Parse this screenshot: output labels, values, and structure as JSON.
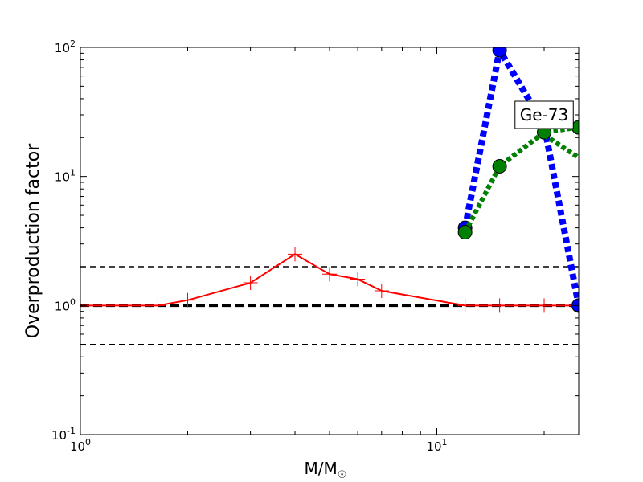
{
  "chart_data": {
    "type": "line",
    "title": "",
    "xlabel": "M/M",
    "xlabel_sub": "☉",
    "ylabel": "Overproduction factor",
    "xscale": "log",
    "yscale": "log",
    "xlim": [
      1,
      25
    ],
    "ylim": [
      0.1,
      100
    ],
    "x_ticks": [
      {
        "value": 1,
        "base": "10",
        "exp": "0"
      },
      {
        "value": 10,
        "base": "10",
        "exp": "1"
      }
    ],
    "y_ticks": [
      {
        "value": 0.1,
        "base": "10",
        "exp": "-1"
      },
      {
        "value": 1,
        "base": "10",
        "exp": "0"
      },
      {
        "value": 10,
        "base": "10",
        "exp": "1"
      },
      {
        "value": 100,
        "base": "10",
        "exp": "2"
      }
    ],
    "grid": false,
    "annotation": {
      "text": "Ge-73",
      "x": 20,
      "y": 30
    },
    "reference_lines": [
      {
        "y": 2,
        "color": "#000000",
        "style": "dashed",
        "width": 1.5
      },
      {
        "y": 1,
        "color": "#000000",
        "style": "dashed",
        "width": 3.5
      },
      {
        "y": 0.5,
        "color": "#000000",
        "style": "dashed",
        "width": 1.5
      }
    ],
    "series": [
      {
        "color": "#ff0000",
        "style": "solid",
        "marker": "plus",
        "x": [
          1,
          1.65,
          2,
          3,
          4,
          5,
          6,
          7,
          12,
          15,
          20,
          25
        ],
        "y": [
          1,
          1,
          1.1,
          1.5,
          2.5,
          1.75,
          1.6,
          1.3,
          1,
          1,
          1,
          1
        ]
      },
      {
        "color": "#0000ff",
        "style": "dotted",
        "marker": "circle",
        "x": [
          12,
          15,
          20,
          25
        ],
        "y": [
          4,
          95,
          25,
          1
        ]
      },
      {
        "color": "#008000",
        "style": "dotted",
        "marker": "circle",
        "x": [
          12,
          15,
          20,
          25
        ],
        "y": [
          3.7,
          12,
          22,
          24
        ]
      },
      {
        "color": "#008000",
        "style": "dotted",
        "marker": "none",
        "x": [
          20,
          25
        ],
        "y": [
          21,
          14
        ]
      }
    ]
  }
}
